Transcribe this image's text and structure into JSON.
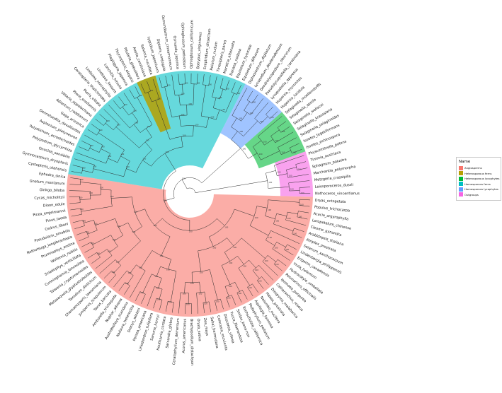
{
  "legend": {
    "title": "Name",
    "items": [
      {
        "label": "Angiosperms",
        "color": "#F8766D"
      },
      {
        "label": "Heterosporous ferns",
        "color": "#B79F00"
      },
      {
        "label": "Heterosporous lycophytes",
        "color": "#00BA38"
      },
      {
        "label": "Homosporous ferns",
        "color": "#00BFC4"
      },
      {
        "label": "Homosporous lycophytes",
        "color": "#619CFF"
      },
      {
        "label": "Outgroups",
        "color": "#F564E3"
      }
    ]
  },
  "chart_data": {
    "type": "tree",
    "subtype": "circular-fan-cladogram",
    "tip_count": 117,
    "node_support_label": "100",
    "groups": [
      {
        "key": "angiosperms",
        "legend": "Angiosperms",
        "color": "#F8766D",
        "tips": [
          "Dryas_octopetala",
          "Populus_trichocarpa",
          "Acacia_argyrophylla",
          "Loropetalum_chinense",
          "Cleome_gynandra",
          "Arabidopsis_thaliana",
          "Atriplex_prostrata",
          "Solanum_xanthocarpum",
          "Lindenbergia_philippensis",
          "Erigeron_canadensis",
          "Inula_helenium",
          "Hydrocotyle_umbellata",
          "Rosmarinus_officinalis",
          "Ipomoea_purpurea",
          "Catharanthus_roseus",
          "Diospyros_malabarica",
          "Hakea_prostrata",
          "Nelumbo_nucifera",
          "Aquilegia_formosa",
          "Podophyllum_peltatum",
          "Eschscholzia_californica",
          "Smilax_bona-nox",
          "Yucca_filamentosa",
          "Dioscorea_villosa",
          "Colocasia_esculenta",
          "Sabal_bermudana",
          "Zea_mays",
          "Oryza_sativa",
          "Brachypodium_distachyon",
          "Acorus_americanus",
          "Ceratophyllum_demersum",
          "Sarcandra_glabra",
          "Houttuynia_cordata",
          "Saruma_henryi",
          "Liriodendron_tulipifera",
          "Persea_americana",
          "Drimys_winteri",
          "Kadsura_heteroclita",
          "Austrobaileya_scandens",
          "Nuphar_advena",
          "Amborella_trichopoda",
          "Taxus_baccata",
          "Juniperus_scopulorum",
          "Chamaecyparis_lawsoniana",
          "Taxodium_distichum",
          "Metasequoia_glyptostroboides",
          "Taiwania_cryptomerioides",
          "Cunninghamia_lanceolata",
          "Sciadopitys_verticillata",
          "Wollemia_nobilis",
          "Prumnopitys_andina",
          "Nothotsuga_longibracteata",
          "Pseudolarix_amabilis",
          "Cedrus_libani",
          "Pinus_taeda",
          "Picea_engelmannii",
          "Dioon_edule",
          "Cycas_micholitzii",
          "Ginkgo_biloba",
          "Gnetum_montanum",
          "Ephedra_sinica"
        ]
      },
      {
        "key": "homosporous-ferns-a",
        "legend": "Homosporous ferns",
        "color": "#00BFC4",
        "tips": [
          "Cystopteris_utahensis",
          "Gymnocarpium_dryopteris",
          "Onoclea_sensibilis",
          "Polypodium_glycyrrhiza",
          "Polystichum_acrostichoides",
          "Asplenium_platyneuron",
          "Dennstaedtia_davallioides",
          "Gaga_arizonica",
          "Adiantum_raddianum",
          "Vittaria_appalachiana",
          "Pteris_ensiformis",
          "Pteris_vittata",
          "Ceratopteris_thalictroides",
          "Lindsaea_microphylla",
          "Lindsaea_linearis",
          "Lonchitis_hirsuta",
          "Plagiogyria_japonica",
          "Thyrsopteris_elegans"
        ]
      },
      {
        "key": "heterosporous-ferns",
        "legend": "Heterosporous ferns",
        "color": "#B79F00",
        "tips": [
          "Pilularia_globulifera",
          "Azolla_caroliniana",
          "Salvinia_cucullata"
        ]
      },
      {
        "key": "homosporous-ferns-b",
        "legend": "Homosporous ferns",
        "color": "#00BFC4",
        "tips": [
          "Lygodium_japonicum",
          "Dipteris_conjugata",
          "Osmundastrum_cinnamomeum",
          "Osmunda_japonica",
          "Ophioglossum_petiolatum",
          "Ophioglossum_californicum",
          "Botrypus_virginianus",
          "Sceptridium_dissectum",
          "Psilotum_nudum",
          "Tmesipteris_parva",
          "Marattia_attenuata",
          "Danaea_nodosa",
          "Equisetum_hyemale",
          "Equisetum_diffusum"
        ]
      },
      {
        "key": "homosporous-lycophytes",
        "legend": "Homosporous lycophytes",
        "color": "#619CFF",
        "tips": [
          "Diphasiastrum_digitatum",
          "Lycopodium_deuterodensum",
          "Dendrolycopodium_obscurum",
          "Pseudolycopodiella_caroliniana",
          "Lycopodiella_appressa",
          "Huperzia_myrsinites",
          "Huperzia_lucidula"
        ]
      },
      {
        "key": "heterosporous-lycophytes",
        "legend": "Heterosporous lycophytes",
        "color": "#00BA38",
        "tips": [
          "Selaginella_moellendorffii",
          "Selaginella_apoda",
          "Selaginella_wallacei",
          "Selaginella_kraussiana",
          "Selaginella_selaginoides",
          "Isoetes_tegetiformans",
          "Isoetes_echinospora"
        ]
      },
      {
        "key": "outgroups",
        "legend": "Outgroups",
        "color": "#F564E3",
        "tips": [
          "Physcomitrella_patens",
          "Timmia_austriaca",
          "Sphagnum_palustre",
          "Marchantia_polymorpha",
          "Metzgeria_crassipilis",
          "Leiosporoceros_dussii",
          "Nothoceros_vincentianus"
        ]
      }
    ]
  }
}
